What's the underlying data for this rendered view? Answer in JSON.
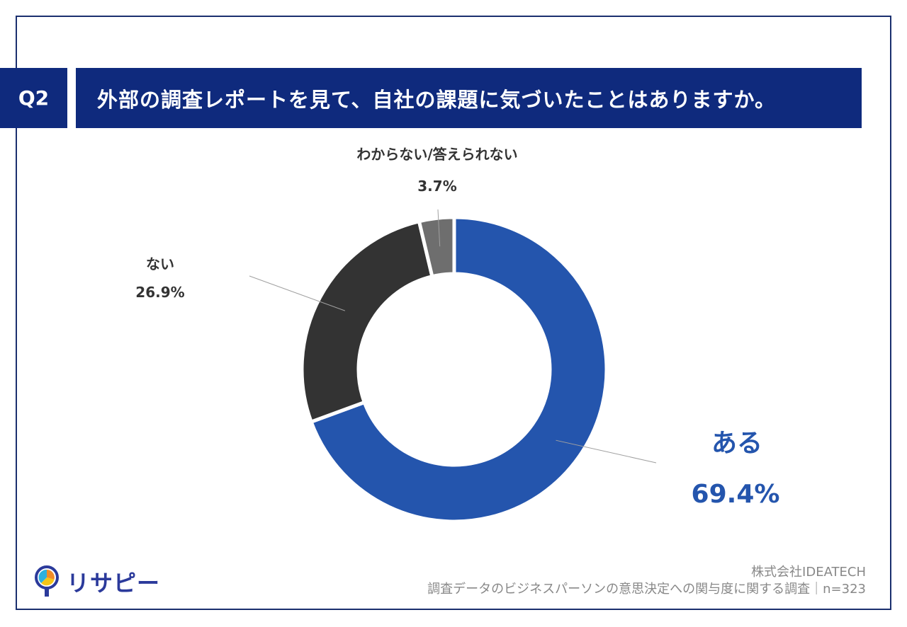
{
  "header": {
    "badge": "Q2",
    "question": "外部の調査レポートを見て、自社の課題に気づいたことはありますか。"
  },
  "chart_data": {
    "type": "pie",
    "style": "donut",
    "slices": [
      {
        "label": "ある",
        "value": 69.4,
        "display": "69.4%",
        "color": "#2455ad"
      },
      {
        "label": "ない",
        "value": 26.9,
        "display": "26.9%",
        "color": "#333333"
      },
      {
        "label": "わからない/答えられない",
        "value": 3.7,
        "display": "3.7%",
        "color": "#6e6e6e"
      }
    ]
  },
  "footer": {
    "company": "株式会社IDEATECH",
    "survey": "調査データのビジネスパーソンの意思決定への関与度に関する調査｜n=323",
    "logo_text": "リサピー"
  }
}
